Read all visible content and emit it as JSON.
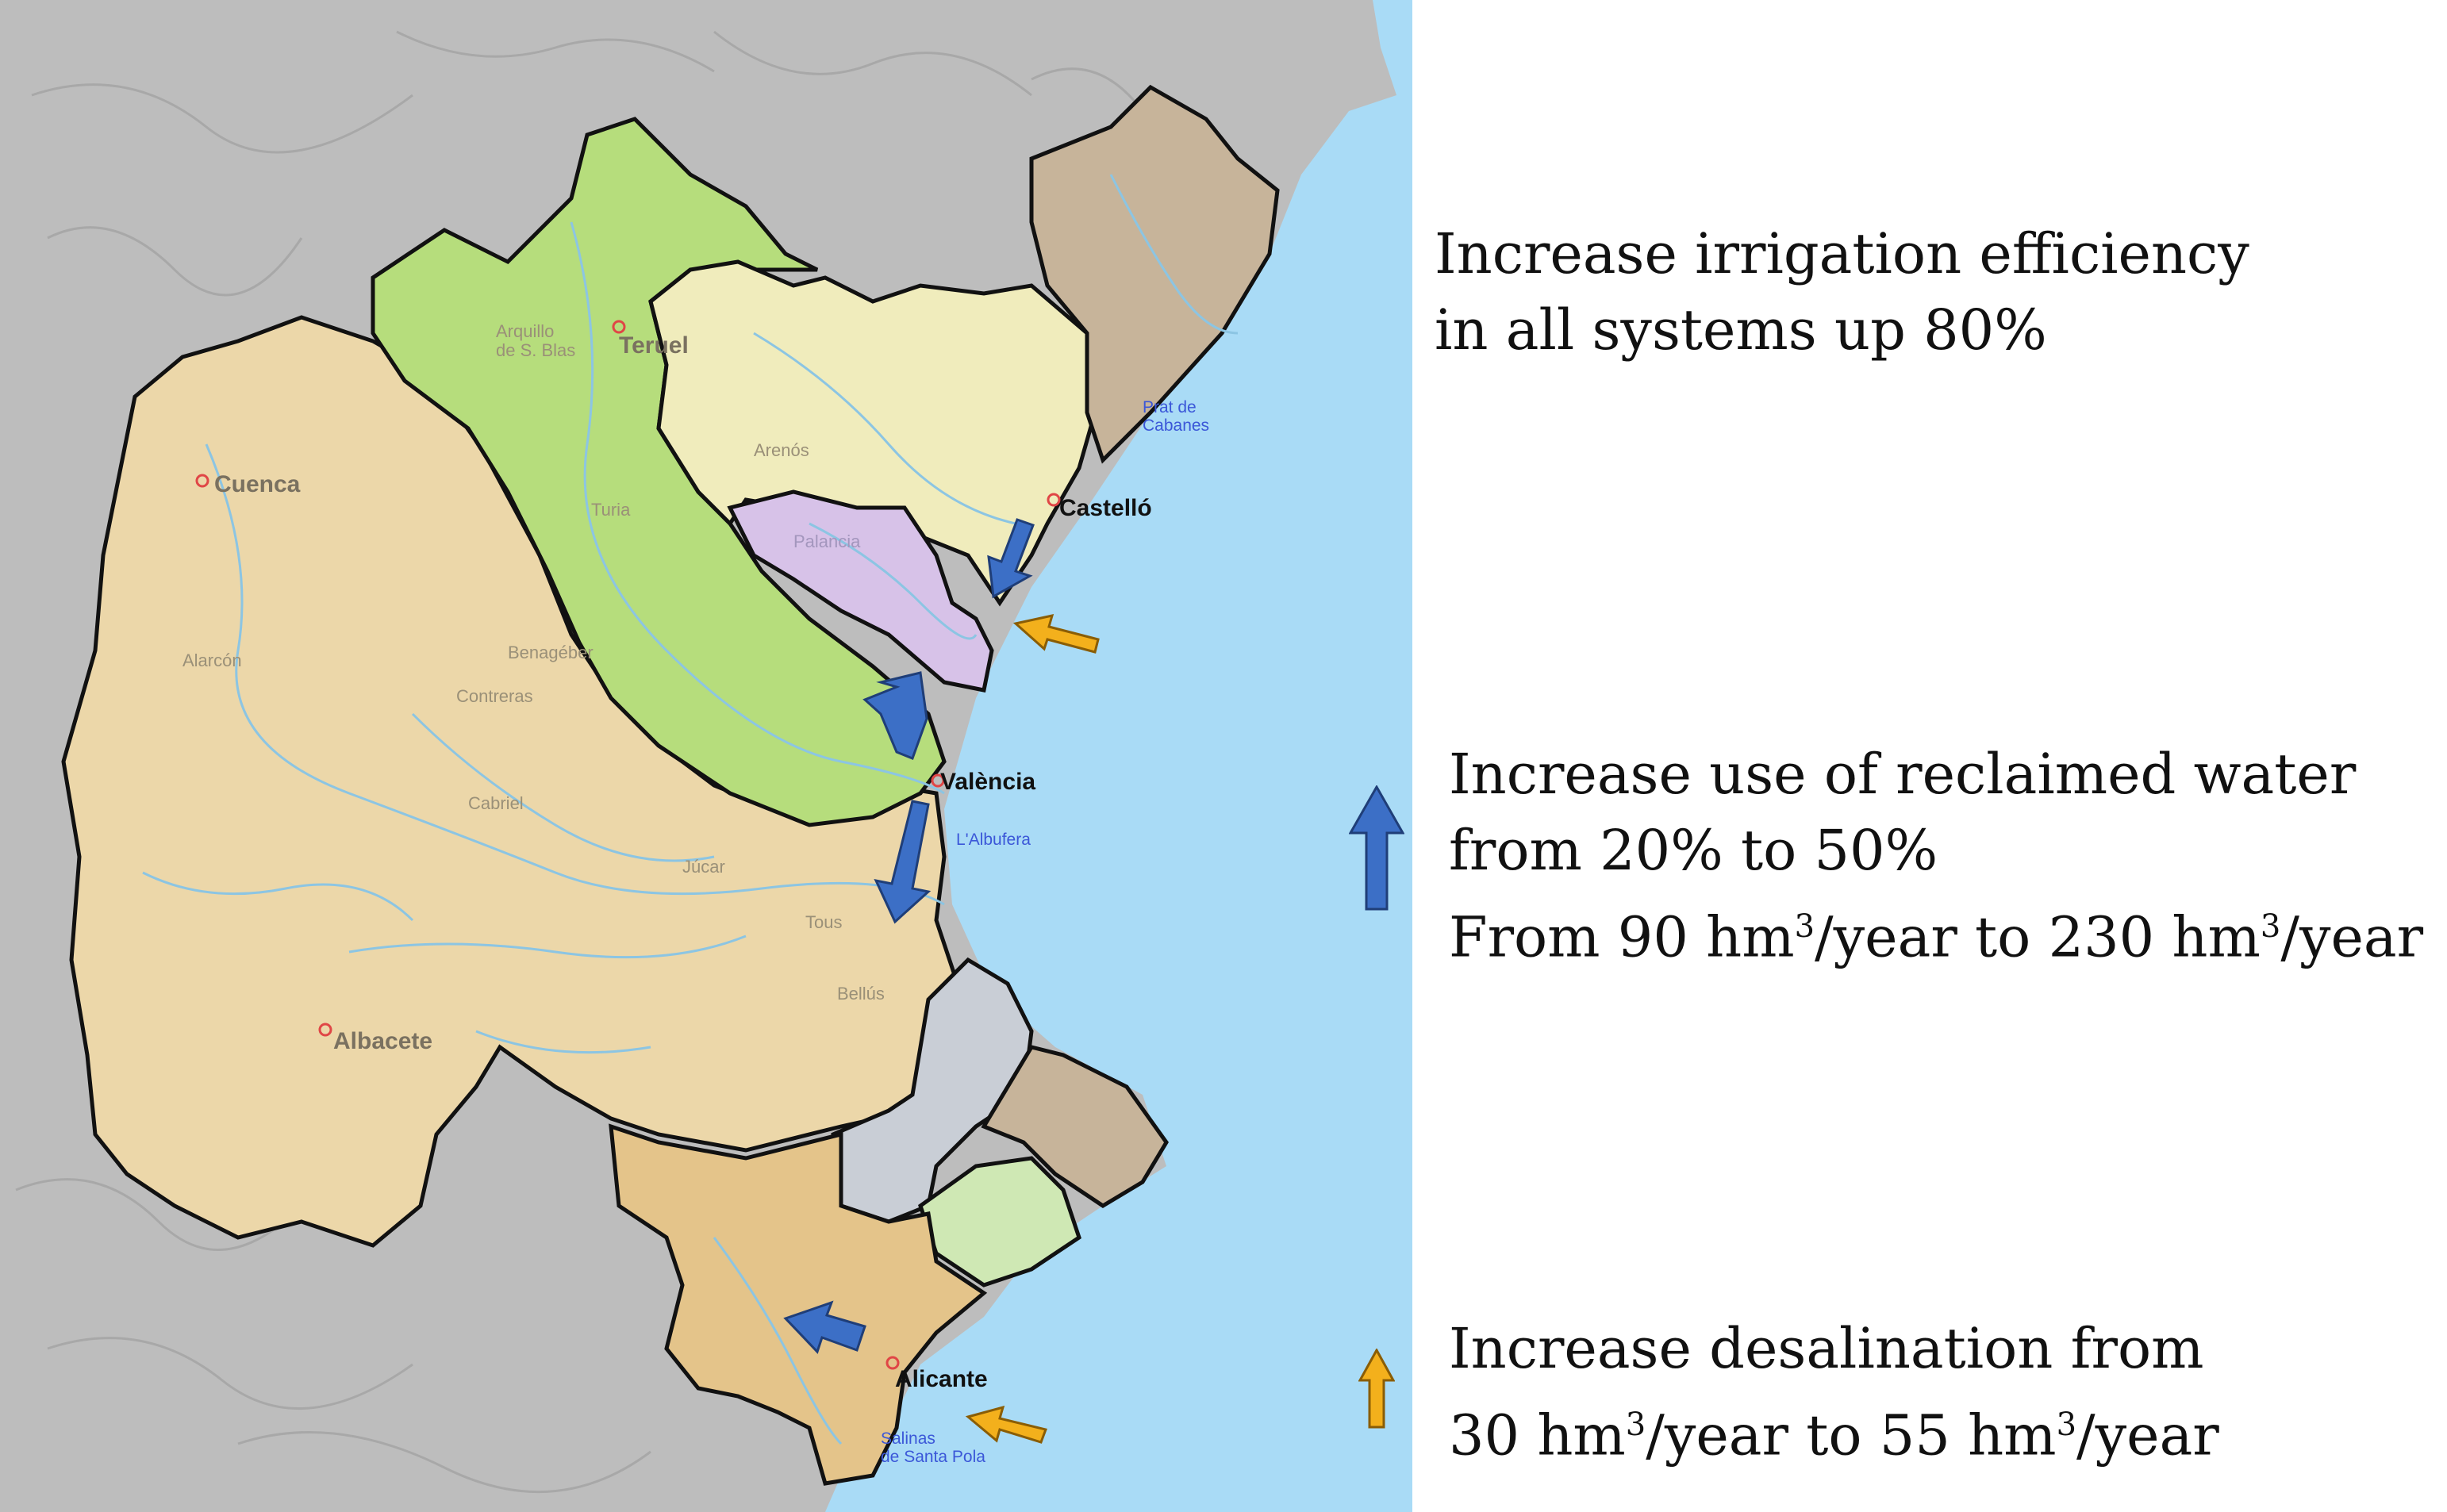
{
  "colors": {
    "sea": "#a9dbf6",
    "relief": "#bdbdbd",
    "basin_tan": "#ecd7a9",
    "basin_green": "#b6dd7c",
    "basin_yellow": "#f0ecbc",
    "basin_purple": "#d7c2e8",
    "basin_brown": "#c7b49a",
    "basin_grey": "#c9ced6",
    "basin_lightgreen": "#cfe8b4",
    "basin_orange": "#e4c48a",
    "river": "#8cc5e3",
    "reclaimed_arrow": "#3c6fc6",
    "desalination_arrow": "#f3b01c"
  },
  "icons": {
    "reclaimed": "reclaimed-water-arrow-icon",
    "desalination": "desalination-arrow-icon",
    "city": "city-marker-icon"
  },
  "map": {
    "cities": [
      {
        "name": "Teruel"
      },
      {
        "name": "Cuenca"
      },
      {
        "name": "Castelló"
      },
      {
        "name": "València"
      },
      {
        "name": "Albacete"
      },
      {
        "name": "Alicante"
      }
    ],
    "labels": [
      {
        "name": "Arquillo\nde S. Blas"
      },
      {
        "name": "Arenós"
      },
      {
        "name": "Palancia"
      },
      {
        "name": "Benagéber"
      },
      {
        "name": "Contreras"
      },
      {
        "name": "Alarcón"
      },
      {
        "name": "Cabriel"
      },
      {
        "name": "Júcar"
      },
      {
        "name": "Tous"
      },
      {
        "name": "Bellús"
      },
      {
        "name": "Turia"
      }
    ],
    "water_labels": [
      {
        "name": "Prat de\nCabanes"
      },
      {
        "name": "L'Albufera"
      },
      {
        "name": "Salinas\nde Santa Pola"
      }
    ]
  },
  "legend": {
    "irrigation": {
      "line1": "Increase irrigation efficiency",
      "line2": "in all systems up 80%"
    },
    "reclaimed": {
      "line1": "Increase use of reclaimed water",
      "line2": "from 20% to 50%",
      "line3_a": "From 90 hm",
      "line3_sup1": "3",
      "line3_b": "/year to 230 hm",
      "line3_sup2": "3",
      "line3_c": "/year"
    },
    "desalination": {
      "line1": "Increase desalination from",
      "line2_a": "30 hm",
      "line2_sup1": "3",
      "line2_b": "/year to 55 hm",
      "line2_sup2": "3",
      "line2_c": "/year"
    }
  }
}
